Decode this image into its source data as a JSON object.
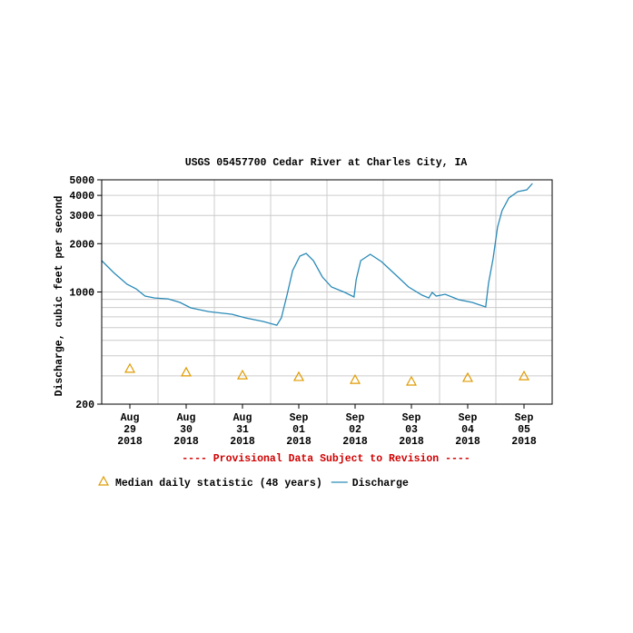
{
  "chart_data": {
    "type": "line",
    "title": "USGS 05457700 Cedar River at Charles City, IA",
    "y_label": "Discharge, cubic feet per second",
    "annotation": "---- Provisional Data Subject to Revision ----",
    "log_y": true,
    "grid": true,
    "xlim": [
      0,
      8
    ],
    "xticks": [
      {
        "value": 0.5,
        "label": "Aug 29 2018"
      },
      {
        "value": 1.5,
        "label": "Aug 30 2018"
      },
      {
        "value": 2.5,
        "label": "Aug 31 2018"
      },
      {
        "value": 3.5,
        "label": "Sep 01 2018"
      },
      {
        "value": 4.5,
        "label": "Sep 02 2018"
      },
      {
        "value": 5.5,
        "label": "Sep 03 2018"
      },
      {
        "value": 6.5,
        "label": "Sep 04 2018"
      },
      {
        "value": 7.5,
        "label": "Sep 05 2018"
      }
    ],
    "x_grid": [
      1,
      2,
      3,
      4,
      5,
      6,
      7
    ],
    "ylim": [
      200,
      5000
    ],
    "yticks": [
      200,
      1000,
      2000,
      3000,
      4000,
      5000
    ],
    "y_grid": [
      300,
      400,
      500,
      600,
      700,
      800,
      900
    ],
    "series": [
      {
        "name": "Median daily statistic (48 years)",
        "type": "scatter",
        "color": "#e09a00",
        "x": [
          0.5,
          1.5,
          2.5,
          3.5,
          4.5,
          5.5,
          6.5,
          7.5
        ],
        "values": [
          333,
          316,
          303,
          296,
          284,
          277,
          292,
          299
        ]
      },
      {
        "name": "Discharge",
        "type": "line",
        "color": "#2a8ab8",
        "x": [
          0,
          0.21,
          0.45,
          0.61,
          0.77,
          0.94,
          1.18,
          1.39,
          1.58,
          1.9,
          2.31,
          2.55,
          2.87,
          3.11,
          3.19,
          3.29,
          3.39,
          3.52,
          3.63,
          3.76,
          3.92,
          4.08,
          4.32,
          4.48,
          4.52,
          4.6,
          4.77,
          4.97,
          5.21,
          5.45,
          5.69,
          5.81,
          5.87,
          5.94,
          6.1,
          6.34,
          6.58,
          6.82,
          6.87,
          6.95,
          7.03,
          7.11,
          7.23,
          7.39,
          7.55,
          7.65
        ],
        "values": [
          1567,
          1323,
          1117,
          1047,
          943,
          918,
          906,
          861,
          796,
          755,
          727,
          690,
          655,
          621,
          690,
          955,
          1358,
          1673,
          1740,
          1567,
          1240,
          1074,
          993,
          931,
          1192,
          1567,
          1718,
          1546,
          1290,
          1074,
          955,
          918,
          993,
          943,
          968,
          895,
          861,
          807,
          1132,
          1610,
          2541,
          3210,
          3855,
          4220,
          4334,
          4746
        ]
      }
    ]
  }
}
